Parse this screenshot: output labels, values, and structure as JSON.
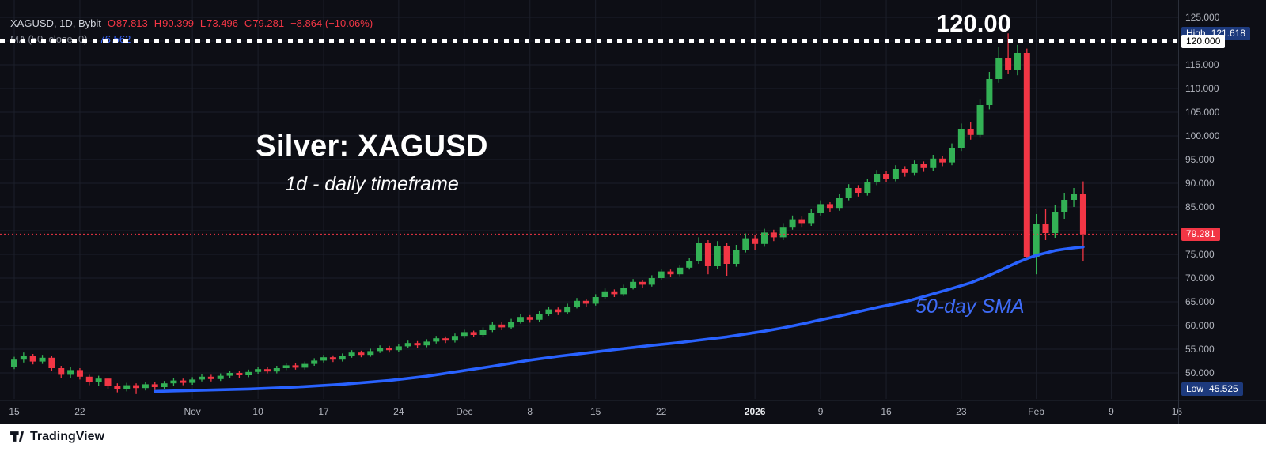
{
  "header": {
    "symbol_line": "XAGUSD, 1D, Bybit",
    "ohlc": [
      {
        "label": "O",
        "value": "87.813"
      },
      {
        "label": "H",
        "value": "90.399"
      },
      {
        "label": "L",
        "value": "73.496"
      },
      {
        "label": "C",
        "value": "79.281"
      }
    ],
    "change": "−8.864 (−10.06%)",
    "ma_label": "MA (50, close, 0)",
    "ma_value": "76.562"
  },
  "annotations": {
    "title": "Silver: XAGUSD",
    "subtitle": "1d - daily timeframe",
    "sma_label": "50-day SMA",
    "level_label": "120.00"
  },
  "price_axis": {
    "ticks": [
      {
        "label": "125.000",
        "price": 125
      },
      {
        "label": "115.000",
        "price": 115
      },
      {
        "label": "110.000",
        "price": 110
      },
      {
        "label": "105.000",
        "price": 105
      },
      {
        "label": "100.000",
        "price": 100
      },
      {
        "label": "95.000",
        "price": 95
      },
      {
        "label": "90.000",
        "price": 90
      },
      {
        "label": "85.000",
        "price": 85
      },
      {
        "label": "75.000",
        "price": 75
      },
      {
        "label": "70.000",
        "price": 70
      },
      {
        "label": "65.000",
        "price": 65
      },
      {
        "label": "60.000",
        "price": 60
      },
      {
        "label": "55.000",
        "price": 55
      },
      {
        "label": "50.000",
        "price": 50
      }
    ],
    "high_badge": {
      "label": "High",
      "value": "121.618",
      "price": 121.618
    },
    "level_badge": {
      "value": "120.000",
      "price": 120
    },
    "last_badge": {
      "value": "79.281",
      "price": 79.281
    },
    "low_badge": {
      "label": "Low",
      "value": "45.525",
      "price": 45.525
    }
  },
  "time_axis": {
    "labels": [
      {
        "text": "15",
        "index": 0
      },
      {
        "text": "22",
        "index": 7
      },
      {
        "text": "Nov",
        "index": 19
      },
      {
        "text": "10",
        "index": 26
      },
      {
        "text": "17",
        "index": 33
      },
      {
        "text": "24",
        "index": 41
      },
      {
        "text": "Dec",
        "index": 48
      },
      {
        "text": "8",
        "index": 55
      },
      {
        "text": "15",
        "index": 62
      },
      {
        "text": "22",
        "index": 69
      },
      {
        "text": "2026",
        "index": 79,
        "strong": true
      },
      {
        "text": "9",
        "index": 86
      },
      {
        "text": "16",
        "index": 93
      },
      {
        "text": "23",
        "index": 101
      },
      {
        "text": "Feb",
        "index": 109
      },
      {
        "text": "9",
        "index": 117
      },
      {
        "text": "16",
        "index": 124
      }
    ]
  },
  "footer": {
    "brand": "TradingView"
  },
  "colors": {
    "background": "#0d0e15",
    "grid": "#1c1f2a",
    "up": "#33b155",
    "down": "#f23645",
    "sma": "#2962ff",
    "axis_text": "#b2b5be",
    "level_line": "#ffffff",
    "badge_navy": "#1d3a7d"
  },
  "chart_data": {
    "type": "candlestick",
    "title": "Silver: XAGUSD",
    "symbol": "XAGUSD",
    "interval": "1D",
    "exchange": "Bybit",
    "last_price": 79.281,
    "session_ohlc": {
      "open": 87.813,
      "high": 90.399,
      "low": 73.496,
      "close": 79.281,
      "change": -8.864,
      "change_pct": -10.06
    },
    "range_high": 121.618,
    "range_low": 45.525,
    "resistance_level": 120.0,
    "ma": {
      "period": 50,
      "source": "close",
      "value": 76.562
    },
    "price_grid": [
      50,
      55,
      60,
      65,
      70,
      75,
      80,
      85,
      90,
      95,
      100,
      105,
      110,
      115,
      120,
      125
    ],
    "candles": [
      [
        51.2,
        53.4,
        50.8,
        52.8
      ],
      [
        52.8,
        54.3,
        52.2,
        53.6
      ],
      [
        53.6,
        54.0,
        51.8,
        52.4
      ],
      [
        52.4,
        53.8,
        51.9,
        53.2
      ],
      [
        53.2,
        53.5,
        50.4,
        51.0
      ],
      [
        51.0,
        51.5,
        48.9,
        49.6
      ],
      [
        49.6,
        51.2,
        49.0,
        50.6
      ],
      [
        50.6,
        51.0,
        48.6,
        49.2
      ],
      [
        49.2,
        49.6,
        47.4,
        48.0
      ],
      [
        48.0,
        49.4,
        47.2,
        48.8
      ],
      [
        48.8,
        49.0,
        46.6,
        47.3
      ],
      [
        47.3,
        47.8,
        45.9,
        46.6
      ],
      [
        46.6,
        47.9,
        46.1,
        47.4
      ],
      [
        47.4,
        47.8,
        45.525,
        46.8
      ],
      [
        46.8,
        48.1,
        46.3,
        47.6
      ],
      [
        47.6,
        48.0,
        46.4,
        47.0
      ],
      [
        47.0,
        48.3,
        46.6,
        47.8
      ],
      [
        47.8,
        48.9,
        47.3,
        48.4
      ],
      [
        48.4,
        48.8,
        47.4,
        47.9
      ],
      [
        47.9,
        49.1,
        47.5,
        48.6
      ],
      [
        48.6,
        49.7,
        48.2,
        49.2
      ],
      [
        49.2,
        49.6,
        48.2,
        48.7
      ],
      [
        48.7,
        49.9,
        48.3,
        49.4
      ],
      [
        49.4,
        50.5,
        49.0,
        50.0
      ],
      [
        50.0,
        50.4,
        49.0,
        49.5
      ],
      [
        49.5,
        50.7,
        49.1,
        50.2
      ],
      [
        50.2,
        51.3,
        49.8,
        50.8
      ],
      [
        50.8,
        51.2,
        49.9,
        50.3
      ],
      [
        50.3,
        51.5,
        49.9,
        51.0
      ],
      [
        51.0,
        52.1,
        50.6,
        51.6
      ],
      [
        51.6,
        52.0,
        50.7,
        51.1
      ],
      [
        51.1,
        52.4,
        50.7,
        51.9
      ],
      [
        51.9,
        53.1,
        51.5,
        52.6
      ],
      [
        52.6,
        53.8,
        52.2,
        53.3
      ],
      [
        53.3,
        53.7,
        52.3,
        52.8
      ],
      [
        52.8,
        54.1,
        52.4,
        53.6
      ],
      [
        53.6,
        54.8,
        53.2,
        54.3
      ],
      [
        54.3,
        54.7,
        53.3,
        53.8
      ],
      [
        53.8,
        55.1,
        53.4,
        54.6
      ],
      [
        54.6,
        55.8,
        54.2,
        55.3
      ],
      [
        55.3,
        55.7,
        54.3,
        54.8
      ],
      [
        54.8,
        56.1,
        54.4,
        55.6
      ],
      [
        55.6,
        56.8,
        55.2,
        56.3
      ],
      [
        56.3,
        56.7,
        55.3,
        55.8
      ],
      [
        55.8,
        57.1,
        55.4,
        56.6
      ],
      [
        56.6,
        57.8,
        56.2,
        57.3
      ],
      [
        57.3,
        57.7,
        56.3,
        56.8
      ],
      [
        56.8,
        58.3,
        56.4,
        57.8
      ],
      [
        57.8,
        59.1,
        57.3,
        58.6
      ],
      [
        58.6,
        58.9,
        57.5,
        58.0
      ],
      [
        58.0,
        59.6,
        57.6,
        59.0
      ],
      [
        59.0,
        60.8,
        58.6,
        60.2
      ],
      [
        60.2,
        60.7,
        59.0,
        59.6
      ],
      [
        59.6,
        61.4,
        59.2,
        60.8
      ],
      [
        60.8,
        62.4,
        60.4,
        61.8
      ],
      [
        61.8,
        62.2,
        60.6,
        61.2
      ],
      [
        61.2,
        63.0,
        60.8,
        62.4
      ],
      [
        62.4,
        64.0,
        62.0,
        63.4
      ],
      [
        63.4,
        63.8,
        62.2,
        62.8
      ],
      [
        62.8,
        64.6,
        62.4,
        64.0
      ],
      [
        64.0,
        65.8,
        63.6,
        65.2
      ],
      [
        65.2,
        65.6,
        64.0,
        64.6
      ],
      [
        64.6,
        66.6,
        64.2,
        66.0
      ],
      [
        66.0,
        67.8,
        65.6,
        67.2
      ],
      [
        67.2,
        67.6,
        66.0,
        66.6
      ],
      [
        66.6,
        68.6,
        66.2,
        68.0
      ],
      [
        68.0,
        69.8,
        67.6,
        69.2
      ],
      [
        69.2,
        69.6,
        68.0,
        68.6
      ],
      [
        68.6,
        70.6,
        68.2,
        70.0
      ],
      [
        70.0,
        72.0,
        69.6,
        71.4
      ],
      [
        71.4,
        71.8,
        70.2,
        70.8
      ],
      [
        70.8,
        72.8,
        70.4,
        72.2
      ],
      [
        72.2,
        74.2,
        71.8,
        73.6
      ],
      [
        73.6,
        78.6,
        73.0,
        77.5
      ],
      [
        77.5,
        78.0,
        70.8,
        72.5
      ],
      [
        72.5,
        77.8,
        71.9,
        76.8
      ],
      [
        76.8,
        77.4,
        70.5,
        73.0
      ],
      [
        73.0,
        77.0,
        72.4,
        76.0
      ],
      [
        76.0,
        79.4,
        75.4,
        78.4
      ],
      [
        78.4,
        79.0,
        76.0,
        77.2
      ],
      [
        77.2,
        80.4,
        76.6,
        79.6
      ],
      [
        79.6,
        80.2,
        77.8,
        78.6
      ],
      [
        78.6,
        81.6,
        78.0,
        80.8
      ],
      [
        80.8,
        83.2,
        80.2,
        82.4
      ],
      [
        82.4,
        83.0,
        80.8,
        81.6
      ],
      [
        81.6,
        84.6,
        81.0,
        83.8
      ],
      [
        83.8,
        86.4,
        83.2,
        85.6
      ],
      [
        85.6,
        86.0,
        84.0,
        84.8
      ],
      [
        84.8,
        87.8,
        84.2,
        87.0
      ],
      [
        87.0,
        89.8,
        86.4,
        89.0
      ],
      [
        89.0,
        89.6,
        87.2,
        88.0
      ],
      [
        88.0,
        91.0,
        87.4,
        90.2
      ],
      [
        90.2,
        92.8,
        89.6,
        92.0
      ],
      [
        92.0,
        92.6,
        90.2,
        91.0
      ],
      [
        91.0,
        93.8,
        90.4,
        93.0
      ],
      [
        93.0,
        93.6,
        91.4,
        92.2
      ],
      [
        92.2,
        94.8,
        91.6,
        94.0
      ],
      [
        94.0,
        94.6,
        92.4,
        93.2
      ],
      [
        93.2,
        96.0,
        92.6,
        95.2
      ],
      [
        95.2,
        95.8,
        93.6,
        94.4
      ],
      [
        94.4,
        98.4,
        93.8,
        97.5
      ],
      [
        97.5,
        102.6,
        96.8,
        101.5
      ],
      [
        101.5,
        103.0,
        99.2,
        100.2
      ],
      [
        100.2,
        107.8,
        99.6,
        106.5
      ],
      [
        106.5,
        113.5,
        105.6,
        112.0
      ],
      [
        112.0,
        118.8,
        111.2,
        116.5
      ],
      [
        116.5,
        121.618,
        113.0,
        114.0
      ],
      [
        114.0,
        119.2,
        112.8,
        117.5
      ],
      [
        117.5,
        118.4,
        73.8,
        74.5
      ],
      [
        74.5,
        83.5,
        70.8,
        81.5
      ],
      [
        81.5,
        84.5,
        78.0,
        79.5
      ],
      [
        79.5,
        85.5,
        78.5,
        84.0
      ],
      [
        84.0,
        88.0,
        82.5,
        86.5
      ],
      [
        86.5,
        89.0,
        85.0,
        87.8
      ],
      [
        87.813,
        90.399,
        73.496,
        79.281
      ]
    ],
    "sma50": [
      [
        15,
        46.1
      ],
      [
        20,
        46.35
      ],
      [
        25,
        46.6
      ],
      [
        30,
        47.0
      ],
      [
        35,
        47.6
      ],
      [
        40,
        48.4
      ],
      [
        44,
        49.3
      ],
      [
        47,
        50.2
      ],
      [
        51,
        51.4
      ],
      [
        55,
        52.7
      ],
      [
        58,
        53.5
      ],
      [
        61,
        54.2
      ],
      [
        64,
        54.9
      ],
      [
        68,
        55.8
      ],
      [
        71,
        56.4
      ],
      [
        73,
        56.9
      ],
      [
        76,
        57.6
      ],
      [
        78,
        58.2
      ],
      [
        80,
        58.8
      ],
      [
        82,
        59.5
      ],
      [
        84,
        60.3
      ],
      [
        86,
        61.2
      ],
      [
        88,
        62.0
      ],
      [
        90,
        62.9
      ],
      [
        92,
        63.8
      ],
      [
        93,
        64.2
      ],
      [
        95,
        65.0
      ],
      [
        97,
        66.1
      ],
      [
        100,
        67.8
      ],
      [
        102,
        69.0
      ],
      [
        103,
        69.8
      ],
      [
        104,
        70.6
      ],
      [
        105,
        71.5
      ],
      [
        106,
        72.4
      ],
      [
        107,
        73.3
      ],
      [
        108,
        74.1
      ],
      [
        109,
        74.8
      ],
      [
        110,
        75.3
      ],
      [
        111,
        75.8
      ],
      [
        112,
        76.1
      ],
      [
        113,
        76.35
      ],
      [
        114,
        76.562
      ]
    ]
  }
}
